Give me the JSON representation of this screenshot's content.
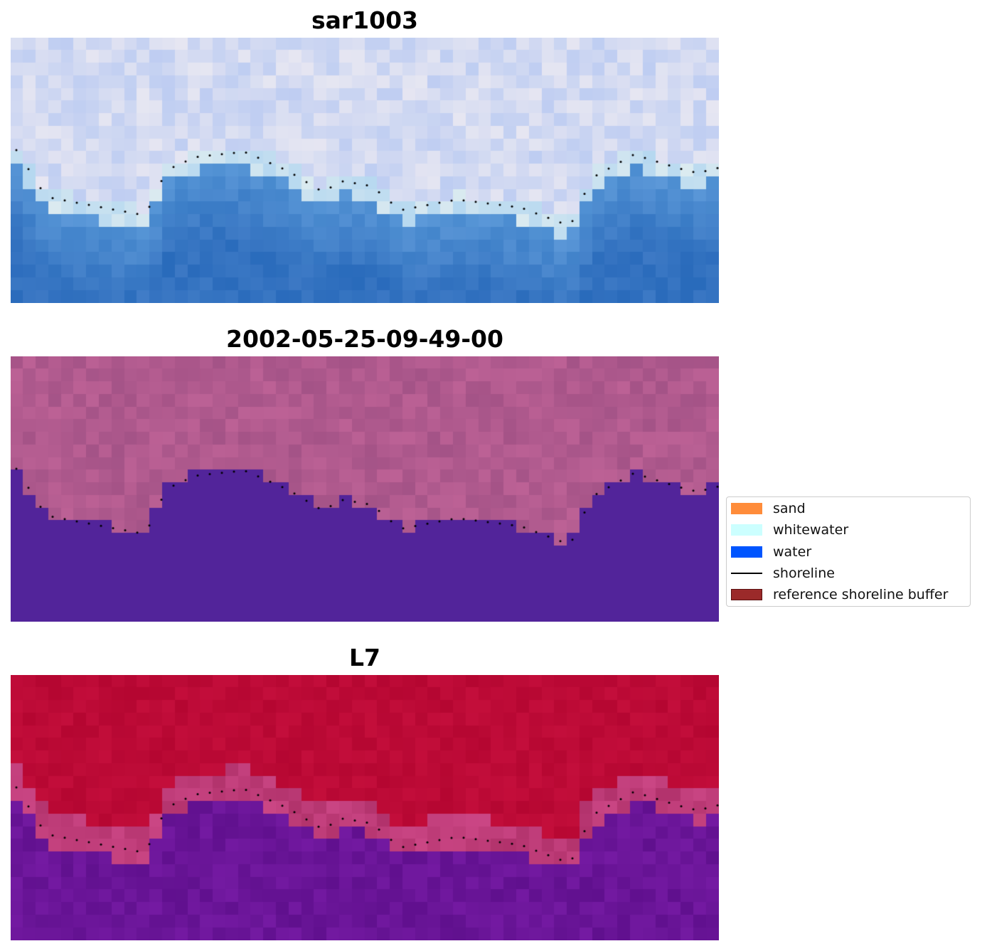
{
  "panels": [
    {
      "title": "sar1003",
      "style": "rgb"
    },
    {
      "title": "2002-05-25-09-49-00",
      "style": "classified"
    },
    {
      "title": "L7",
      "style": "index"
    }
  ],
  "legend": {
    "items": [
      {
        "label": "sand",
        "color": "#ff8c3a",
        "kind": "patch"
      },
      {
        "label": "whitewater",
        "color": "#ccffff",
        "kind": "patch"
      },
      {
        "label": "water",
        "color": "#0055ff",
        "kind": "patch"
      },
      {
        "label": "shoreline",
        "color": "#000000",
        "kind": "line"
      },
      {
        "label": "reference shoreline buffer",
        "color": "#9b2a2a",
        "kind": "patch"
      }
    ]
  },
  "colors": {
    "water_rgb": "#3372c0",
    "sand_rgb": "#e6e6f2",
    "classified_land": "#b05a8e",
    "classified_water": "#52249a",
    "index_land": "#bc0a36",
    "index_water": "#6a1598",
    "shoreline": "#000000"
  }
}
